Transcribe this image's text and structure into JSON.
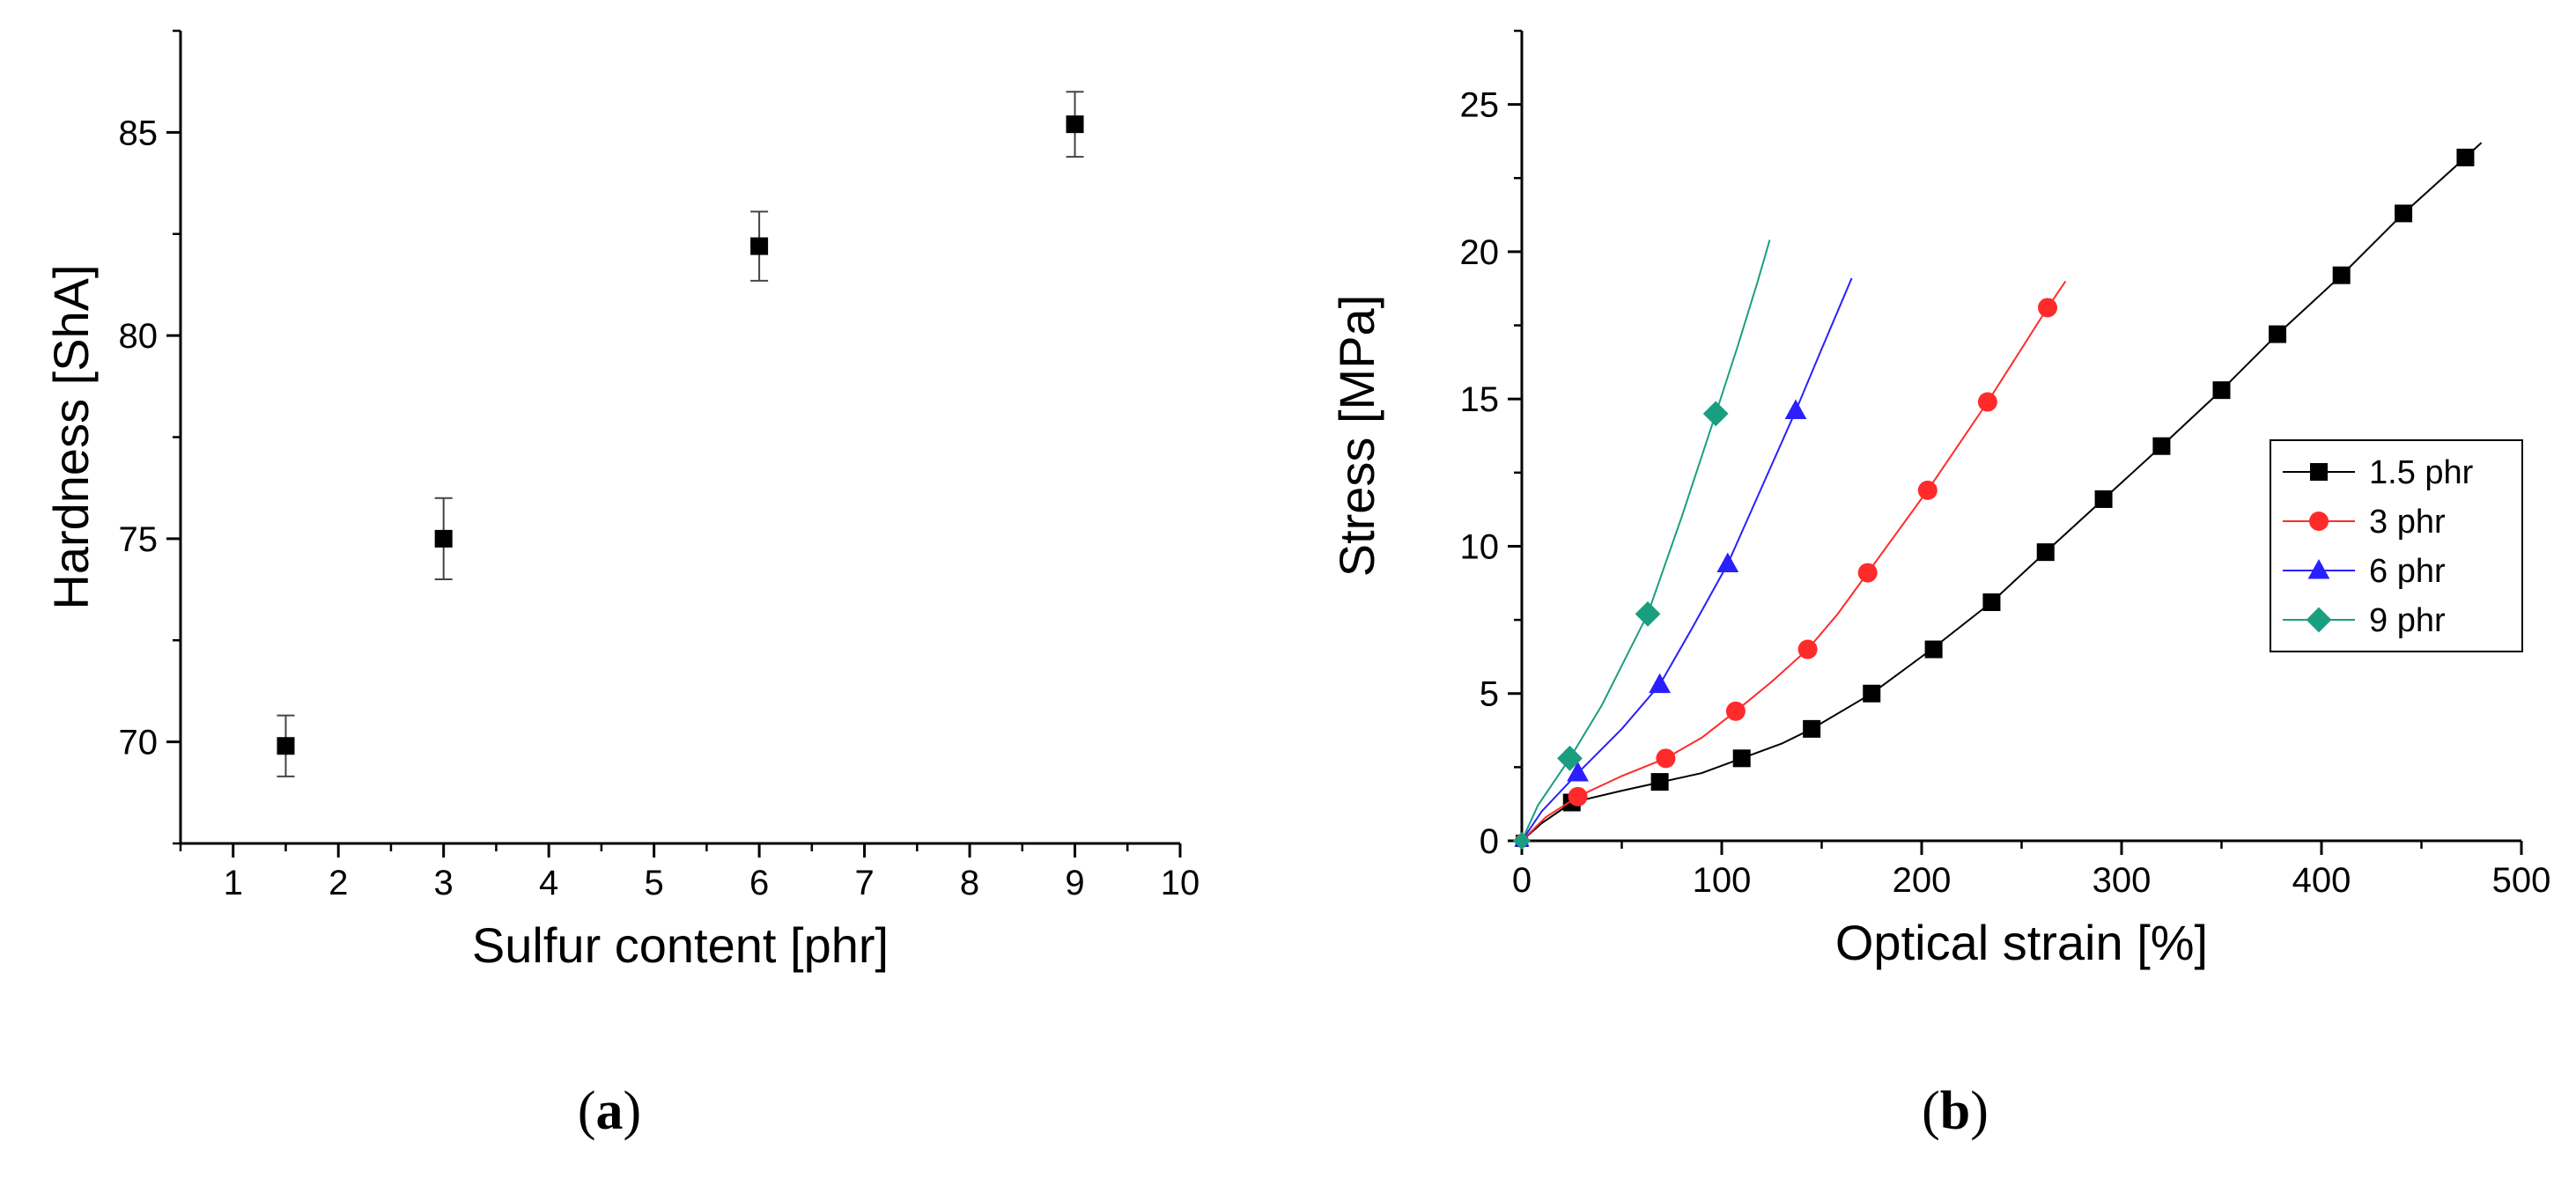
{
  "chart_data": [
    {
      "panel": "(a)",
      "type": "scatter",
      "xlabel": "Sulfur content [phr]",
      "ylabel": "Hardness [ShA]",
      "xlim": [
        0.5,
        10
      ],
      "ylim": [
        67.5,
        87.5
      ],
      "xticks": [
        1,
        2,
        3,
        4,
        5,
        6,
        7,
        8,
        9,
        10
      ],
      "yticks": [
        70,
        75,
        80,
        85
      ],
      "series": [
        {
          "name": "Hardness",
          "marker": "square",
          "color": "#000000",
          "points": [
            {
              "x": 1.5,
              "y": 69.9,
              "err": 0.75
            },
            {
              "x": 3,
              "y": 75.0,
              "err": 1.0
            },
            {
              "x": 6,
              "y": 82.2,
              "err": 0.85
            },
            {
              "x": 9,
              "y": 85.2,
              "err": 0.8
            }
          ]
        }
      ]
    },
    {
      "panel": "(b)",
      "type": "line",
      "xlabel": "Optical strain [%]",
      "ylabel": "Stress [MPa]",
      "xlim": [
        0,
        500
      ],
      "ylim": [
        0,
        27.5
      ],
      "xticks": [
        0,
        100,
        200,
        300,
        400,
        500
      ],
      "yticks": [
        0,
        5,
        10,
        15,
        20,
        25
      ],
      "legend_position": "right",
      "series": [
        {
          "name": "1.5 phr",
          "color": "#000000",
          "marker": "square",
          "line": [
            [
              0,
              0
            ],
            [
              10,
              0.6
            ],
            [
              25,
              1.3
            ],
            [
              50,
              1.7
            ],
            [
              70,
              2.0
            ],
            [
              90,
              2.3
            ],
            [
              110,
              2.8
            ],
            [
              130,
              3.3
            ],
            [
              145,
              3.8
            ],
            [
              175,
              5.0
            ],
            [
              205,
              6.5
            ],
            [
              235,
              8.1
            ],
            [
              262,
              9.8
            ],
            [
              291,
              11.6
            ],
            [
              320,
              13.4
            ],
            [
              350,
              15.3
            ],
            [
              378,
              17.2
            ],
            [
              410,
              19.2
            ],
            [
              441,
              21.3
            ],
            [
              472,
              23.2
            ],
            [
              480,
              23.7
            ]
          ],
          "markers": [
            [
              25,
              1.3
            ],
            [
              69,
              2.0
            ],
            [
              110,
              2.8
            ],
            [
              145,
              3.8
            ],
            [
              175,
              5.0
            ],
            [
              206,
              6.5
            ],
            [
              235,
              8.1
            ],
            [
              262,
              9.8
            ],
            [
              291,
              11.6
            ],
            [
              320,
              13.4
            ],
            [
              350,
              15.3
            ],
            [
              378,
              17.2
            ],
            [
              410,
              19.2
            ],
            [
              441,
              21.3
            ],
            [
              472,
              23.2
            ]
          ]
        },
        {
          "name": "3 phr",
          "color": "#ff2b2b",
          "marker": "circle",
          "line": [
            [
              0,
              0
            ],
            [
              12,
              0.8
            ],
            [
              28,
              1.5
            ],
            [
              50,
              2.2
            ],
            [
              72,
              2.8
            ],
            [
              90,
              3.5
            ],
            [
              107,
              4.4
            ],
            [
              125,
              5.4
            ],
            [
              143,
              6.5
            ],
            [
              158,
              7.7
            ],
            [
              173,
              9.1
            ],
            [
              188,
              10.5
            ],
            [
              203,
              11.9
            ],
            [
              218,
              13.4
            ],
            [
              233,
              14.9
            ],
            [
              248,
              16.5
            ],
            [
              263,
              18.1
            ],
            [
              272,
              19.0
            ]
          ],
          "markers": [
            [
              28,
              1.5
            ],
            [
              72,
              2.8
            ],
            [
              107,
              4.4
            ],
            [
              143,
              6.5
            ],
            [
              173,
              9.1
            ],
            [
              203,
              11.9
            ],
            [
              233,
              14.9
            ],
            [
              263,
              18.1
            ]
          ]
        },
        {
          "name": "6 phr",
          "color": "#2a1fff",
          "marker": "triangle",
          "line": [
            [
              0,
              0
            ],
            [
              10,
              1.0
            ],
            [
              28,
              2.3
            ],
            [
              50,
              3.8
            ],
            [
              69,
              5.3
            ],
            [
              85,
              7.2
            ],
            [
              103,
              9.4
            ],
            [
              120,
              12.0
            ],
            [
              137,
              14.6
            ],
            [
              150,
              16.7
            ],
            [
              160,
              18.3
            ],
            [
              165,
              19.1
            ]
          ],
          "markers": [
            [
              28,
              2.3
            ],
            [
              69,
              5.3
            ],
            [
              103,
              9.4
            ],
            [
              137,
              14.6
            ]
          ]
        },
        {
          "name": "9 phr",
          "color": "#1a9e80",
          "marker": "diamond",
          "line": [
            [
              0,
              0
            ],
            [
              8,
              1.2
            ],
            [
              24,
              2.8
            ],
            [
              40,
              4.6
            ],
            [
              63,
              7.7
            ],
            [
              80,
              11.0
            ],
            [
              97,
              14.5
            ],
            [
              108,
              16.8
            ],
            [
              118,
              19.0
            ],
            [
              124,
              20.4
            ]
          ],
          "markers": [
            [
              24,
              2.8
            ],
            [
              63,
              7.7
            ],
            [
              97,
              14.5
            ]
          ]
        }
      ]
    }
  ],
  "captions": {
    "a_open": "(",
    "a_letter": "a",
    "a_close": ")",
    "b_open": "(",
    "b_letter": "b",
    "b_close": ")"
  }
}
